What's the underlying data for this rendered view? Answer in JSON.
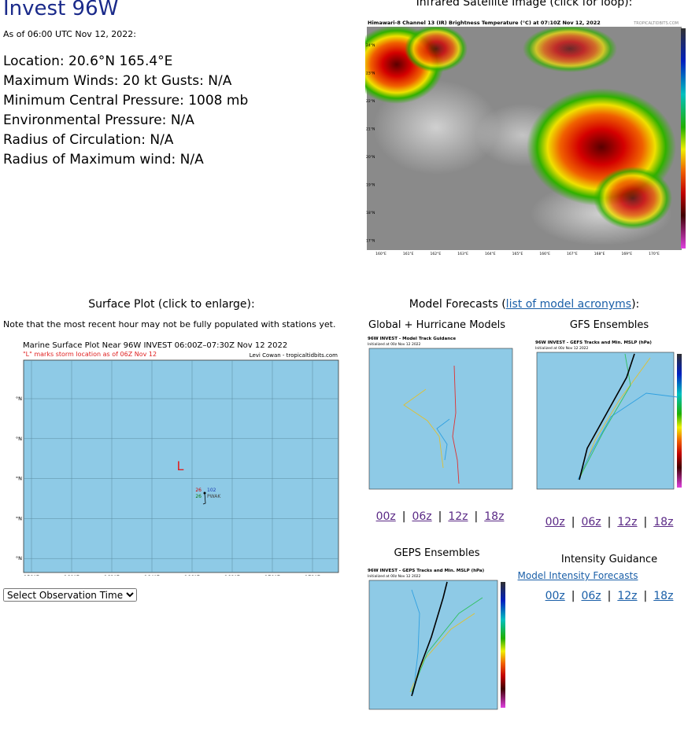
{
  "header": {
    "title": "Invest 96W",
    "as_of": "As of 06:00 UTC Nov 12, 2022:"
  },
  "details": [
    "Location: 20.6°N 165.4°E",
    "Maximum Winds: 20 kt  Gusts: N/A",
    "Minimum Central Pressure: 1008 mb",
    "Environmental Pressure: N/A",
    "Radius of Circulation: N/A",
    "Radius of Maximum wind: N/A"
  ],
  "satellite": {
    "heading": "Infrared Satellite Image (click for loop):",
    "image_title": "Himawari-8 Channel 13 (IR) Brightness Temperature (°C) at 07:10Z Nov 12, 2022",
    "credit": "TROPICALTIDBITS.COM",
    "lat_labels": [
      "24°N",
      "23°N",
      "22°N",
      "21°N",
      "20°N",
      "19°N",
      "18°N",
      "17°N"
    ],
    "lon_labels": [
      "160°E",
      "161°E",
      "162°E",
      "163°E",
      "164°E",
      "165°E",
      "166°E",
      "167°E",
      "168°E",
      "169°E",
      "170°E"
    ]
  },
  "surface": {
    "heading": "Surface Plot (click to enlarge):",
    "note": "Note that the most recent hour may not be fully populated with stations yet.",
    "image_title": "Marine Surface Plot Near 96W INVEST 06:00Z–07:30Z Nov 12 2022",
    "image_subtitle": "\"L\" marks storm location as of 06Z Nov 12",
    "credit": "Levi Cowan - tropicaltidbits.com",
    "storm_marker": "L",
    "station": [
      "26",
      "102",
      "26",
      "PWAK"
    ],
    "lat_labels": [
      "24°N",
      "22°N",
      "20°N",
      "18°N",
      "16°N"
    ],
    "lon_labels": [
      "158°E",
      "160°E",
      "162°E",
      "164°E",
      "166°E",
      "168°E",
      "170°E",
      "172°E"
    ]
  },
  "select": "Select Observation Time...",
  "models": {
    "heading_prefix": "Model Forecasts (",
    "heading_link": "list of model acronyms",
    "heading_suffix": "):",
    "separator": "|",
    "panels": [
      {
        "title": "Global + Hurricane Models",
        "image_title": "96W INVEST - Model Track Guidance",
        "image_subtitle": "Initialized at 00z Nov 12 2022",
        "links": [
          "00z",
          "06z",
          "12z",
          "18z"
        ]
      },
      {
        "title": "GFS Ensembles",
        "image_title": "96W INVEST - GEFS Tracks and Min. MSLP (hPa)",
        "image_subtitle": "Initialized at 00z Nov 12 2022",
        "links": [
          "00z",
          "06z",
          "12z",
          "18z"
        ]
      },
      {
        "title": "GEPS Ensembles",
        "image_title": "96W INVEST - GEPS Tracks and Min. MSLP (hPa)",
        "image_subtitle": "Initialized at 00z Nov 12 2022",
        "links": []
      }
    ]
  },
  "intensity": {
    "title": "Intensity Guidance",
    "link": "Model Intensity Forecasts",
    "links": [
      "00z",
      "06z",
      "12z",
      "18z"
    ]
  }
}
